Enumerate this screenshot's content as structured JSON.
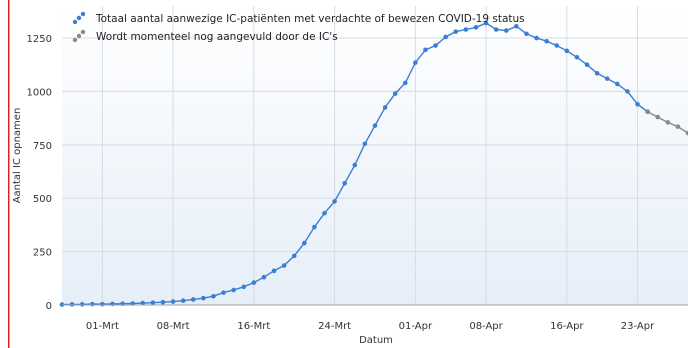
{
  "colors": {
    "series_main": "#3b7fd4",
    "series_pending": "#8a8a8a",
    "plot_bg_top": "#ffffff",
    "plot_bg_bottom": "#e6eef8",
    "grid": "#d7dce3",
    "frame_left": "#e02020"
  },
  "chart_data": {
    "type": "line",
    "xlabel": "Datum",
    "ylabel": "Aantal IC opnamen",
    "ylim": [
      0,
      1400
    ],
    "yticks": [
      0,
      250,
      500,
      750,
      1000,
      1250
    ],
    "x_ticks": [
      {
        "day": 4,
        "label": "01-Mrt"
      },
      {
        "day": 11,
        "label": "08-Mrt"
      },
      {
        "day": 19,
        "label": "16-Mrt"
      },
      {
        "day": 27,
        "label": "24-Mrt"
      },
      {
        "day": 35,
        "label": "01-Apr"
      },
      {
        "day": 42,
        "label": "08-Apr"
      },
      {
        "day": 50,
        "label": "16-Apr"
      },
      {
        "day": 57,
        "label": "23-Apr"
      }
    ],
    "legend": {
      "placement": "top-left",
      "entries": [
        {
          "name": "Totaal aantal aanwezige IC-patiënten met verdachte of bewezen COVID-19 status",
          "color": "#3b7fd4"
        },
        {
          "name": "Wordt momenteel nog aangevuld door de IC's",
          "color": "#8a8a8a"
        }
      ]
    },
    "grid": true,
    "series": [
      {
        "name": "Totaal aantal aanwezige IC-patiënten met verdachte of bewezen COVID-19 status",
        "x": [
          0,
          1,
          2,
          3,
          4,
          5,
          6,
          7,
          8,
          9,
          10,
          11,
          12,
          13,
          14,
          15,
          16,
          17,
          18,
          19,
          20,
          21,
          22,
          23,
          24,
          25,
          26,
          27,
          28,
          29,
          30,
          31,
          32,
          33,
          34,
          35,
          36,
          37,
          38,
          39,
          40,
          41,
          42,
          43,
          44,
          45,
          46,
          47,
          48,
          49,
          50,
          51,
          52,
          53,
          54,
          55,
          56,
          57,
          58
        ],
        "y": [
          2,
          3,
          3,
          4,
          4,
          5,
          6,
          7,
          9,
          11,
          13,
          16,
          20,
          26,
          32,
          41,
          58,
          70,
          85,
          105,
          130,
          160,
          185,
          230,
          290,
          365,
          430,
          485,
          570,
          655,
          755,
          840,
          925,
          990,
          1040,
          1135,
          1195,
          1215,
          1255,
          1280,
          1290,
          1300,
          1320,
          1290,
          1285,
          1305,
          1270,
          1250,
          1235,
          1215,
          1190,
          1160,
          1125,
          1085,
          1060,
          1035,
          1000,
          940,
          905
        ]
      },
      {
        "name": "Wordt momenteel nog aangevuld door de IC's",
        "x": [
          58,
          59,
          60,
          61,
          62
        ],
        "y": [
          905,
          880,
          855,
          835,
          805
        ]
      }
    ]
  }
}
